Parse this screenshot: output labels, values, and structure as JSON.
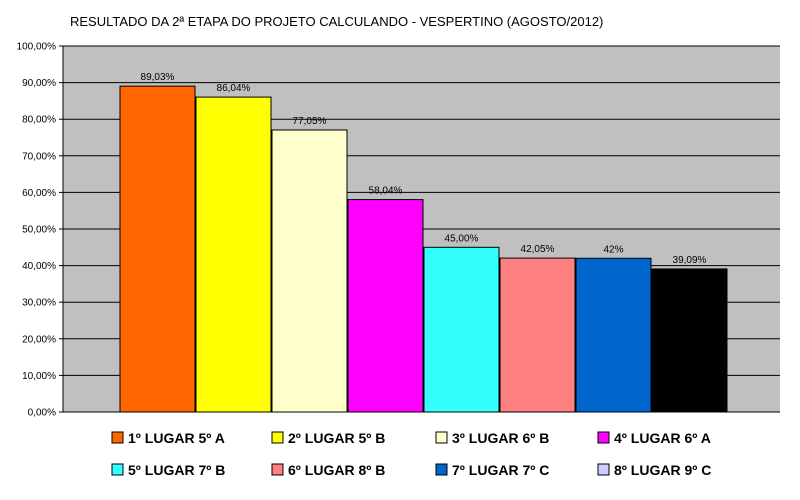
{
  "chart_data": {
    "type": "bar",
    "title": "RESULTADO DA 2ª ETAPA DO PROJETO CALCULANDO - VESPERTINO  (AGOSTO/2012)",
    "xlabel": "",
    "ylabel": "",
    "ylim": [
      0,
      100
    ],
    "y_ticks": [
      "0,00%",
      "10,00%",
      "20,00%",
      "30,00%",
      "40,00%",
      "50,00%",
      "60,00%",
      "70,00%",
      "80,00%",
      "90,00%",
      "100,00%"
    ],
    "grid": true,
    "legend_position": "bottom",
    "plot_background": "#c0c0c0",
    "series": [
      {
        "name": "1º LUGAR 5º A",
        "value": 89.03,
        "label": "89,03%",
        "color": "#ff6600"
      },
      {
        "name": "2º LUGAR 5º B",
        "value": 86.04,
        "label": "86,04%",
        "color": "#ffff00"
      },
      {
        "name": "3º LUGAR 6º B",
        "value": 77.05,
        "label": "77,05%",
        "color": "#ffffcc"
      },
      {
        "name": "4º LUGAR 6º A",
        "value": 58.04,
        "label": "58,04%",
        "color": "#ff00ff"
      },
      {
        "name": "5º LUGAR 7º B",
        "value": 45.0,
        "label": "45,00%",
        "color": "#33ffff"
      },
      {
        "name": "6º LUGAR 8º B",
        "value": 42.05,
        "label": "42,05%",
        "color": "#ff8080"
      },
      {
        "name": "7º LUGAR 7º C",
        "value": 42.0,
        "label": "42%",
        "color": "#0066cc"
      },
      {
        "name": "8º LUGAR 9º C",
        "value": 39.09,
        "label": "39,09%",
        "color": "#000000"
      }
    ],
    "legend": [
      {
        "label": "1º LUGAR 5º A",
        "color": "#ff6600"
      },
      {
        "label": "2º LUGAR 5º B",
        "color": "#ffff00"
      },
      {
        "label": "3º LUGAR 6º B",
        "color": "#ffffcc"
      },
      {
        "label": "4º LUGAR 6º A",
        "color": "#ff00ff"
      },
      {
        "label": "5º LUGAR 7º B",
        "color": "#33ffff"
      },
      {
        "label": "6º LUGAR 8º B",
        "color": "#ff8080"
      },
      {
        "label": "7º LUGAR 7º C",
        "color": "#0066cc"
      },
      {
        "label": "8º LUGAR 9º C",
        "color": "#ccccff"
      }
    ]
  }
}
